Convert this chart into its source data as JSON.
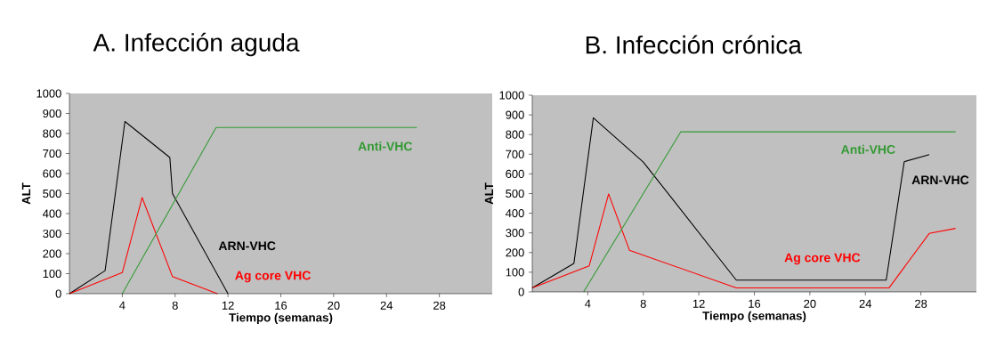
{
  "chart_data": [
    {
      "type": "line",
      "title": "A. Infección aguda",
      "xlabel": "Tiempo (semanas)",
      "ylabel": "ALT",
      "xlim": [
        0,
        32
      ],
      "ylim": [
        0,
        1000
      ],
      "xticks": [
        4,
        8,
        12,
        16,
        20,
        24,
        28
      ],
      "yticks": [
        0,
        100,
        200,
        300,
        400,
        500,
        600,
        700,
        800,
        900,
        1000
      ],
      "series": [
        {
          "name": "ARN-VHC",
          "color": "#000000",
          "x": [
            0,
            2.7,
            4.2,
            7.6,
            7.8,
            12
          ],
          "values": [
            0,
            115,
            860,
            680,
            500,
            0
          ]
        },
        {
          "name": "Ag core VHC",
          "color": "#ff0000",
          "x": [
            0,
            4,
            5.5,
            7.8,
            11.2
          ],
          "values": [
            0,
            105,
            480,
            85,
            0
          ]
        },
        {
          "name": "Anti-VHC",
          "color": "#339933",
          "x": [
            4,
            11.1,
            26.3
          ],
          "values": [
            0,
            830,
            830
          ]
        }
      ]
    },
    {
      "type": "line",
      "title": "B. Infección crónica",
      "xlabel": "Tiempo (semanas)",
      "ylabel": "ALT",
      "xlim": [
        0,
        32
      ],
      "ylim": [
        0,
        1000
      ],
      "xticks": [
        4,
        8,
        12,
        16,
        20,
        24,
        28
      ],
      "yticks": [
        0,
        100,
        200,
        300,
        400,
        500,
        600,
        700,
        800,
        900,
        1000
      ],
      "series": [
        {
          "name": "ARN-VHC",
          "color": "#000000",
          "x": [
            0,
            3,
            4.4,
            8,
            14.7,
            25.5,
            26.8,
            28.6
          ],
          "values": [
            20,
            145,
            885,
            660,
            60,
            60,
            662,
            698
          ]
        },
        {
          "name": "Ag core VHC",
          "color": "#ff0000",
          "x": [
            0,
            4.1,
            5.5,
            7,
            14.7,
            25.7,
            28.6,
            30.5
          ],
          "values": [
            20,
            132,
            498,
            212,
            20,
            20,
            297,
            323
          ]
        },
        {
          "name": "Anti-VHC",
          "color": "#339933",
          "x": [
            3.7,
            10.7,
            30.5
          ],
          "values": [
            0,
            814,
            814
          ]
        }
      ]
    }
  ]
}
